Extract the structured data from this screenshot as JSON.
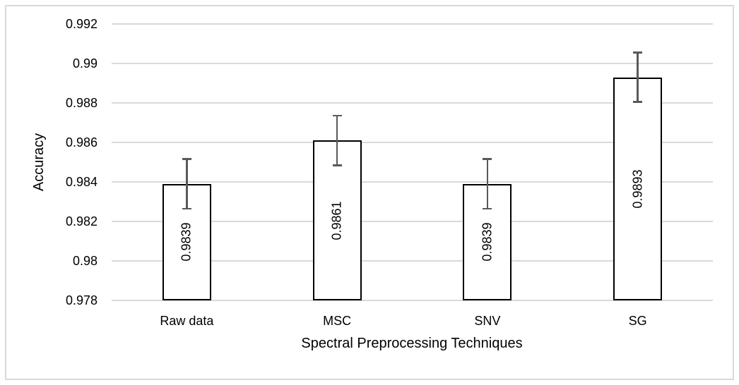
{
  "chart_data": {
    "type": "bar",
    "title": "",
    "categories": [
      "Raw data",
      "MSC",
      "SNV",
      "SG"
    ],
    "series": [
      {
        "name": "Accuracy",
        "values": [
          0.9839,
          0.9861,
          0.9839,
          0.9893
        ]
      }
    ],
    "data_labels": [
      "0.9839",
      "0.9861",
      "0.9839",
      "0.9893"
    ],
    "error_bars_plus_minus": [
      0.0013,
      0.0013,
      0.0013,
      0.0013
    ],
    "xlabel": "Spectral Preprocessing Techniques",
    "ylabel": "Accuracy",
    "ylim": [
      0.978,
      0.992
    ],
    "ytick_step": 0.002,
    "yticks": [
      "0.992",
      "0.99",
      "0.988",
      "0.986",
      "0.984",
      "0.982",
      "0.98",
      "0.978"
    ],
    "grid": true,
    "legend_position": "none",
    "data_label_orientation": "rotated-90-centered"
  },
  "style": {
    "bar_fill": "#ffffff",
    "bar_border_color": "#000000",
    "error_bar_color": "#595959",
    "gridline_color": "#d9d9d9",
    "axis_line_color": "#d9d9d9",
    "text_color": "#000000",
    "chart_border_color": "#d9d9d9",
    "background": "#ffffff"
  }
}
